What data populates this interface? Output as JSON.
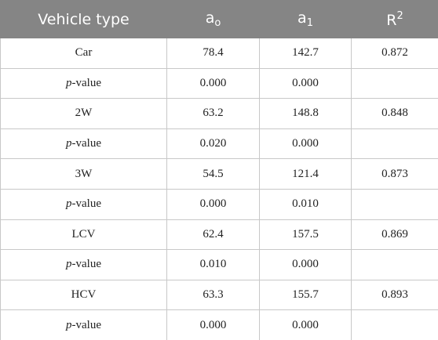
{
  "table": {
    "header": [
      "Vehicle type",
      {
        "base": "a",
        "sub": "o"
      },
      {
        "base": "a",
        "sub": "1"
      },
      {
        "base": "R",
        "sup": "2"
      }
    ],
    "rows": [
      [
        "Car",
        "78.4",
        "142.7",
        "0.872"
      ],
      [
        {
          "italic": "p",
          "text": "-value"
        },
        "0.000",
        "0.000"
      ],
      [
        "2W",
        "63.2",
        "148.8",
        "0.848"
      ],
      [
        {
          "italic": "p",
          "text": "-value"
        },
        "0.020",
        "0.000"
      ],
      [
        "3W",
        "54.5",
        "121.4",
        "0.873"
      ],
      [
        {
          "italic": "p",
          "text": "-value"
        },
        "0.000",
        "0.010"
      ],
      [
        "LCV",
        "62.4",
        "157.5",
        "0.869"
      ],
      [
        {
          "italic": "p",
          "text": "-value"
        },
        "0.010",
        "0.000"
      ],
      [
        "HCV",
        "63.3",
        "155.7",
        "0.893"
      ],
      [
        {
          "italic": "p",
          "text": "-value"
        },
        "0.000",
        "0.000"
      ]
    ]
  }
}
